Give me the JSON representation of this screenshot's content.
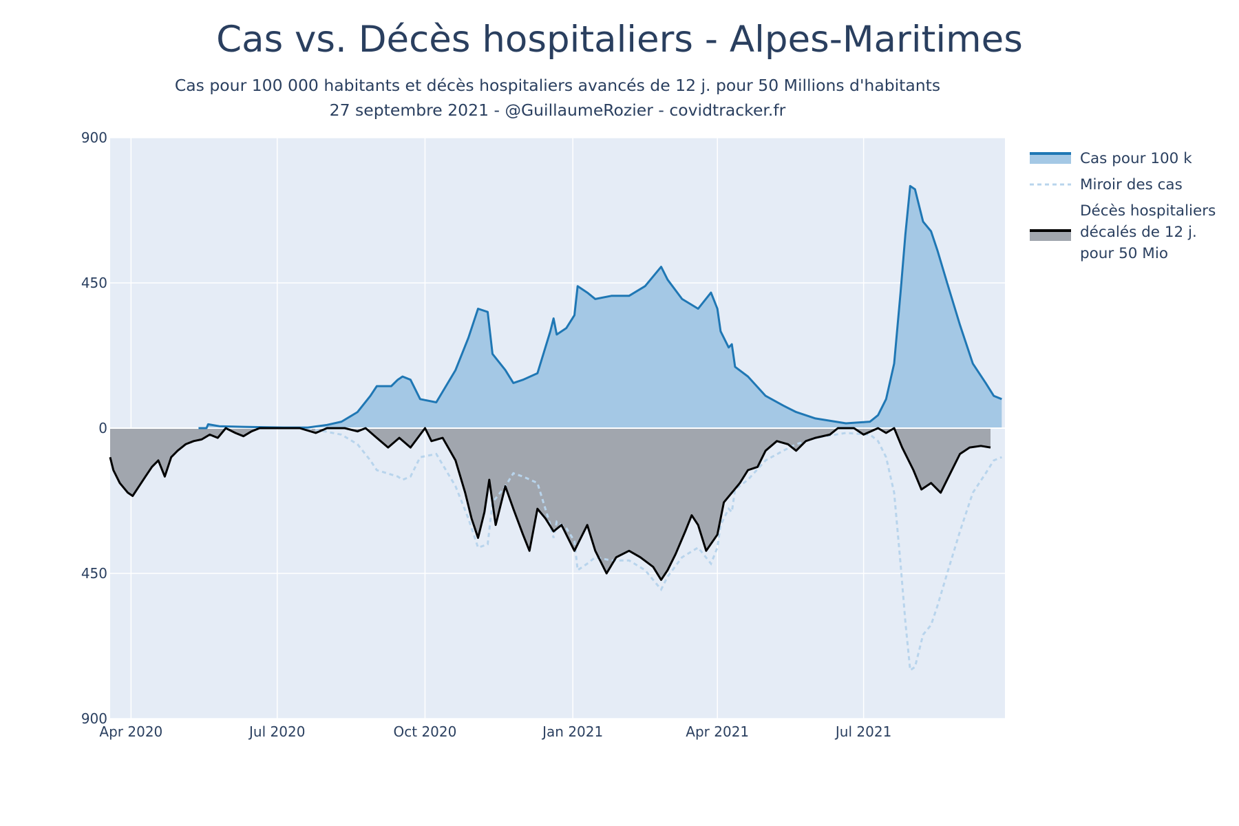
{
  "chart_data": {
    "type": "area",
    "title": "Cas vs. Décès hospitaliers - Alpes-Maritimes",
    "subtitle_line1": "Cas pour 100 000 habitants et décès hospitaliers avancés de 12 j. pour 50 Millions d'habitants",
    "subtitle_line2": "27 septembre 2021 - @GuillaumeRozier - covidtracker.fr",
    "x_start": "2020-03-19",
    "x_end": "2021-09-27",
    "ylim": [
      -900,
      900
    ],
    "y_ticks": [
      {
        "value": 900,
        "label": "900"
      },
      {
        "value": 450,
        "label": "450"
      },
      {
        "value": 0,
        "label": "0"
      },
      {
        "value": -450,
        "label": "450"
      },
      {
        "value": -900,
        "label": "900"
      }
    ],
    "x_ticks": [
      {
        "date": "2020-04-01",
        "label": "Apr 2020"
      },
      {
        "date": "2020-07-01",
        "label": "Jul 2020"
      },
      {
        "date": "2020-10-01",
        "label": "Oct 2020"
      },
      {
        "date": "2021-01-01",
        "label": "Jan 2021"
      },
      {
        "date": "2021-04-01",
        "label": "Apr 2021"
      },
      {
        "date": "2021-07-01",
        "label": "Jul 2021"
      }
    ],
    "legend": {
      "cases": "Cas pour 100 k",
      "mirror": "Miroir des cas",
      "deaths_line1": "Décès hospitaliers",
      "deaths_line2": "décalés de 12 j.",
      "deaths_line3": "pour 50 Mio"
    },
    "series": [
      {
        "name": "Cas pour 100 k",
        "points": [
          [
            "2020-05-13",
            0
          ],
          [
            "2020-05-18",
            0
          ],
          [
            "2020-05-19",
            12
          ],
          [
            "2020-05-26",
            6
          ],
          [
            "2020-06-10",
            4
          ],
          [
            "2020-07-05",
            2
          ],
          [
            "2020-07-20",
            2
          ],
          [
            "2020-08-01",
            10
          ],
          [
            "2020-08-10",
            20
          ],
          [
            "2020-08-20",
            50
          ],
          [
            "2020-08-28",
            100
          ],
          [
            "2020-09-01",
            130
          ],
          [
            "2020-09-10",
            130
          ],
          [
            "2020-09-14",
            150
          ],
          [
            "2020-09-17",
            160
          ],
          [
            "2020-09-22",
            150
          ],
          [
            "2020-09-28",
            90
          ],
          [
            "2020-10-08",
            80
          ],
          [
            "2020-10-20",
            180
          ],
          [
            "2020-10-28",
            280
          ],
          [
            "2020-11-03",
            370
          ],
          [
            "2020-11-09",
            360
          ],
          [
            "2020-11-12",
            230
          ],
          [
            "2020-11-20",
            180
          ],
          [
            "2020-11-25",
            140
          ],
          [
            "2020-12-01",
            150
          ],
          [
            "2020-12-10",
            170
          ],
          [
            "2020-12-18",
            300
          ],
          [
            "2020-12-20",
            340
          ],
          [
            "2020-12-22",
            290
          ],
          [
            "2020-12-28",
            310
          ],
          [
            "2021-01-02",
            350
          ],
          [
            "2021-01-04",
            440
          ],
          [
            "2021-01-10",
            420
          ],
          [
            "2021-01-15",
            400
          ],
          [
            "2021-01-25",
            410
          ],
          [
            "2021-02-05",
            410
          ],
          [
            "2021-02-15",
            440
          ],
          [
            "2021-02-25",
            500
          ],
          [
            "2021-03-01",
            460
          ],
          [
            "2021-03-10",
            400
          ],
          [
            "2021-03-20",
            370
          ],
          [
            "2021-03-28",
            420
          ],
          [
            "2021-04-01",
            370
          ],
          [
            "2021-04-03",
            300
          ],
          [
            "2021-04-08",
            250
          ],
          [
            "2021-04-10",
            260
          ],
          [
            "2021-04-12",
            190
          ],
          [
            "2021-04-20",
            160
          ],
          [
            "2021-05-01",
            100
          ],
          [
            "2021-05-12",
            70
          ],
          [
            "2021-05-20",
            50
          ],
          [
            "2021-06-01",
            30
          ],
          [
            "2021-06-20",
            15
          ],
          [
            "2021-07-05",
            20
          ],
          [
            "2021-07-10",
            40
          ],
          [
            "2021-07-15",
            90
          ],
          [
            "2021-07-20",
            200
          ],
          [
            "2021-07-24",
            420
          ],
          [
            "2021-07-27",
            600
          ],
          [
            "2021-07-30",
            750
          ],
          [
            "2021-08-02",
            740
          ],
          [
            "2021-08-07",
            640
          ],
          [
            "2021-08-12",
            610
          ],
          [
            "2021-08-16",
            550
          ],
          [
            "2021-08-22",
            450
          ],
          [
            "2021-08-30",
            320
          ],
          [
            "2021-09-07",
            200
          ],
          [
            "2021-09-15",
            140
          ],
          [
            "2021-09-20",
            100
          ],
          [
            "2021-09-25",
            90
          ]
        ]
      },
      {
        "name": "Miroir des cas",
        "points": [
          [
            "2020-07-20",
            0
          ],
          [
            "2020-08-10",
            -20
          ],
          [
            "2020-08-20",
            -50
          ],
          [
            "2020-08-28",
            -100
          ],
          [
            "2020-09-01",
            -130
          ],
          [
            "2020-09-14",
            -150
          ],
          [
            "2020-09-17",
            -160
          ],
          [
            "2020-09-22",
            -150
          ],
          [
            "2020-09-28",
            -90
          ],
          [
            "2020-10-08",
            -80
          ],
          [
            "2020-10-20",
            -180
          ],
          [
            "2020-10-28",
            -280
          ],
          [
            "2020-11-03",
            -370
          ],
          [
            "2020-11-09",
            -360
          ],
          [
            "2020-11-12",
            -230
          ],
          [
            "2020-11-20",
            -180
          ],
          [
            "2020-11-25",
            -140
          ],
          [
            "2020-12-01",
            -150
          ],
          [
            "2020-12-10",
            -170
          ],
          [
            "2020-12-18",
            -300
          ],
          [
            "2020-12-20",
            -340
          ],
          [
            "2020-12-22",
            -290
          ],
          [
            "2020-12-28",
            -310
          ],
          [
            "2021-01-02",
            -350
          ],
          [
            "2021-01-04",
            -440
          ],
          [
            "2021-01-10",
            -420
          ],
          [
            "2021-01-15",
            -400
          ],
          [
            "2021-01-25",
            -410
          ],
          [
            "2021-02-05",
            -410
          ],
          [
            "2021-02-15",
            -440
          ],
          [
            "2021-02-25",
            -500
          ],
          [
            "2021-03-01",
            -460
          ],
          [
            "2021-03-10",
            -400
          ],
          [
            "2021-03-20",
            -370
          ],
          [
            "2021-03-28",
            -420
          ],
          [
            "2021-04-01",
            -370
          ],
          [
            "2021-04-03",
            -300
          ],
          [
            "2021-04-08",
            -250
          ],
          [
            "2021-04-10",
            -260
          ],
          [
            "2021-04-12",
            -190
          ],
          [
            "2021-04-20",
            -160
          ],
          [
            "2021-05-01",
            -100
          ],
          [
            "2021-05-12",
            -70
          ],
          [
            "2021-05-20",
            -50
          ],
          [
            "2021-06-01",
            -30
          ],
          [
            "2021-06-20",
            -15
          ],
          [
            "2021-07-05",
            -20
          ],
          [
            "2021-07-10",
            -40
          ],
          [
            "2021-07-15",
            -90
          ],
          [
            "2021-07-20",
            -200
          ],
          [
            "2021-07-24",
            -420
          ],
          [
            "2021-07-27",
            -600
          ],
          [
            "2021-07-30",
            -750
          ],
          [
            "2021-08-02",
            -740
          ],
          [
            "2021-08-07",
            -640
          ],
          [
            "2021-08-12",
            -610
          ],
          [
            "2021-08-16",
            -550
          ],
          [
            "2021-08-22",
            -450
          ],
          [
            "2021-08-30",
            -320
          ],
          [
            "2021-09-07",
            -200
          ],
          [
            "2021-09-15",
            -140
          ],
          [
            "2021-09-20",
            -100
          ],
          [
            "2021-09-25",
            -90
          ]
        ]
      },
      {
        "name": "Décès hospitaliers décalés de 12 j. pour 50 Mio",
        "points": [
          [
            "2020-03-19",
            -90
          ],
          [
            "2020-03-21",
            -130
          ],
          [
            "2020-03-25",
            -170
          ],
          [
            "2020-03-30",
            -200
          ],
          [
            "2020-04-02",
            -210
          ],
          [
            "2020-04-06",
            -180
          ],
          [
            "2020-04-10",
            -150
          ],
          [
            "2020-04-14",
            -120
          ],
          [
            "2020-04-18",
            -100
          ],
          [
            "2020-04-22",
            -150
          ],
          [
            "2020-04-26",
            -90
          ],
          [
            "2020-04-30",
            -70
          ],
          [
            "2020-05-05",
            -50
          ],
          [
            "2020-05-10",
            -40
          ],
          [
            "2020-05-15",
            -35
          ],
          [
            "2020-05-20",
            -20
          ],
          [
            "2020-05-25",
            -30
          ],
          [
            "2020-05-30",
            0
          ],
          [
            "2020-06-05",
            -15
          ],
          [
            "2020-06-10",
            -25
          ],
          [
            "2020-06-15",
            -10
          ],
          [
            "2020-06-20",
            0
          ],
          [
            "2020-07-15",
            0
          ],
          [
            "2020-07-25",
            -15
          ],
          [
            "2020-08-01",
            0
          ],
          [
            "2020-08-12",
            0
          ],
          [
            "2020-08-20",
            -10
          ],
          [
            "2020-08-25",
            0
          ],
          [
            "2020-09-01",
            -30
          ],
          [
            "2020-09-08",
            -60
          ],
          [
            "2020-09-15",
            -30
          ],
          [
            "2020-09-22",
            -60
          ],
          [
            "2020-09-28",
            -20
          ],
          [
            "2020-10-01",
            0
          ],
          [
            "2020-10-05",
            -40
          ],
          [
            "2020-10-12",
            -30
          ],
          [
            "2020-10-20",
            -100
          ],
          [
            "2020-10-26",
            -200
          ],
          [
            "2020-10-30",
            -280
          ],
          [
            "2020-11-03",
            -340
          ],
          [
            "2020-11-07",
            -260
          ],
          [
            "2020-11-10",
            -160
          ],
          [
            "2020-11-14",
            -300
          ],
          [
            "2020-11-20",
            -180
          ],
          [
            "2020-11-25",
            -250
          ],
          [
            "2020-12-01",
            -330
          ],
          [
            "2020-12-05",
            -380
          ],
          [
            "2020-12-10",
            -250
          ],
          [
            "2020-12-15",
            -280
          ],
          [
            "2020-12-20",
            -320
          ],
          [
            "2020-12-25",
            -300
          ],
          [
            "2021-01-02",
            -380
          ],
          [
            "2021-01-05",
            -350
          ],
          [
            "2021-01-10",
            -300
          ],
          [
            "2021-01-15",
            -380
          ],
          [
            "2021-01-22",
            -450
          ],
          [
            "2021-01-28",
            -400
          ],
          [
            "2021-02-05",
            -380
          ],
          [
            "2021-02-12",
            -400
          ],
          [
            "2021-02-20",
            -430
          ],
          [
            "2021-02-25",
            -470
          ],
          [
            "2021-03-01",
            -440
          ],
          [
            "2021-03-06",
            -390
          ],
          [
            "2021-03-12",
            -320
          ],
          [
            "2021-03-16",
            -270
          ],
          [
            "2021-03-20",
            -300
          ],
          [
            "2021-03-25",
            -380
          ],
          [
            "2021-04-01",
            -330
          ],
          [
            "2021-04-05",
            -230
          ],
          [
            "2021-04-10",
            -200
          ],
          [
            "2021-04-15",
            -170
          ],
          [
            "2021-04-20",
            -130
          ],
          [
            "2021-04-26",
            -120
          ],
          [
            "2021-05-01",
            -70
          ],
          [
            "2021-05-08",
            -40
          ],
          [
            "2021-05-15",
            -50
          ],
          [
            "2021-05-20",
            -70
          ],
          [
            "2021-05-26",
            -40
          ],
          [
            "2021-06-01",
            -30
          ],
          [
            "2021-06-10",
            -20
          ],
          [
            "2021-06-15",
            0
          ],
          [
            "2021-06-25",
            0
          ],
          [
            "2021-07-01",
            -20
          ],
          [
            "2021-07-10",
            0
          ],
          [
            "2021-07-15",
            -15
          ],
          [
            "2021-07-20",
            0
          ],
          [
            "2021-07-25",
            -60
          ],
          [
            "2021-08-01",
            -130
          ],
          [
            "2021-08-06",
            -190
          ],
          [
            "2021-08-12",
            -170
          ],
          [
            "2021-08-18",
            -200
          ],
          [
            "2021-08-24",
            -140
          ],
          [
            "2021-08-30",
            -80
          ],
          [
            "2021-09-05",
            -60
          ],
          [
            "2021-09-12",
            -55
          ],
          [
            "2021-09-18",
            -60
          ]
        ]
      }
    ]
  },
  "colors": {
    "plot_bg": "#e5ecf6",
    "grid": "#ffffff",
    "cases_line": "#1f77b4",
    "cases_fill": "#a4c8e5",
    "mirror_line": "#b8d4ec",
    "deaths_line": "#000000",
    "deaths_fill": "#a1a6ae",
    "text": "#2a3f5f"
  }
}
